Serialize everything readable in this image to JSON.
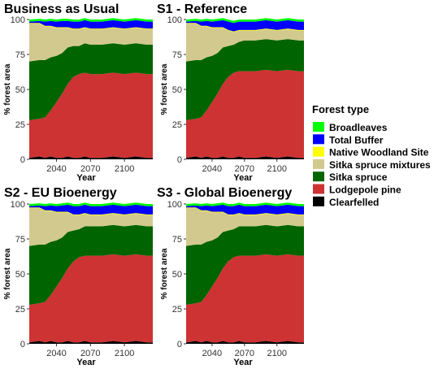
{
  "chart_data": {
    "type": "area",
    "stacked": true,
    "x_ticks": [
      2040,
      2070,
      2100
    ],
    "xlim": [
      2016,
      2125
    ],
    "ylim": [
      0,
      100
    ],
    "y_ticks": [
      0,
      25,
      50,
      75,
      100
    ],
    "legend": {
      "title": "Forest type",
      "placement": "right",
      "entries": [
        {
          "name": "Broadleaves",
          "color": "#00ff00"
        },
        {
          "name": "Total Buffer",
          "color": "#0000ff"
        },
        {
          "name": "Native Woodland Site",
          "color": "#ffff00"
        },
        {
          "name": "Sitka spruce mixtures",
          "color": "#d2c98e"
        },
        {
          "name": "Sitka spruce",
          "color": "#006400"
        },
        {
          "name": "Lodgepole pine",
          "color": "#cd3333"
        },
        {
          "name": "Clearfelled",
          "color": "#000000"
        }
      ]
    },
    "panels": [
      {
        "title": "Business as Usual",
        "xlabel": "Year",
        "ylabel": "% forest area",
        "x": [
          2016,
          2025,
          2030,
          2035,
          2040,
          2045,
          2050,
          2055,
          2060,
          2065,
          2070,
          2080,
          2090,
          2100,
          2110,
          2120,
          2125
        ],
        "series": [
          {
            "name": "Clearfelled",
            "values": [
              1,
              2,
              1,
              2,
              1,
              1,
              2,
              1,
              1,
              2,
              1,
              1,
              2,
              1,
              2,
              1,
              1
            ]
          },
          {
            "name": "Lodgepole pine",
            "values": [
              27,
              27,
              29,
              33,
              40,
              46,
              52,
              58,
              60,
              60,
              60,
              60,
              60,
              60,
              60,
              60,
              60
            ]
          },
          {
            "name": "Sitka spruce",
            "values": [
              42,
              42,
              41,
              38,
              33,
              29,
              26,
              22,
              20,
              21,
              21,
              21,
              21,
              21,
              21,
              21,
              21
            ]
          },
          {
            "name": "Sitka spruce mixtures",
            "values": [
              27,
              26,
              24,
              22,
              20,
              18,
              14,
              12,
              12,
              11,
              11,
              11,
              11,
              11,
              11,
              11,
              11
            ]
          },
          {
            "name": "Native Woodland Site",
            "values": [
              0.5,
              0.5,
              0.5,
              0.5,
              0.5,
              0.5,
              0.5,
              0.5,
              0.5,
              0.5,
              0.5,
              0.5,
              0.5,
              0.5,
              0.5,
              0.5,
              0.5
            ]
          },
          {
            "name": "Total Buffer",
            "values": [
              1,
              1.5,
              3,
              3.5,
              4,
              4.5,
              4.5,
              5,
              5,
              5,
              5,
              5,
              5,
              5,
              5,
              5,
              5
            ]
          },
          {
            "name": "Broadleaves",
            "values": [
              1.5,
              1.5,
              1.5,
              1.5,
              1.5,
              1.5,
              1.5,
              1.5,
              1.5,
              1.5,
              1.5,
              1.5,
              1.5,
              1.5,
              1.5,
              1.5,
              1.5
            ]
          }
        ]
      },
      {
        "title": "S1 - Reference",
        "xlabel": "Year",
        "ylabel": "% forest area",
        "x": [
          2016,
          2025,
          2030,
          2035,
          2040,
          2045,
          2050,
          2055,
          2060,
          2065,
          2070,
          2080,
          2090,
          2100,
          2110,
          2120,
          2125
        ],
        "series": [
          {
            "name": "Clearfelled",
            "values": [
              1,
              2,
              1,
              2,
              1,
              1,
              2,
              1,
              1,
              2,
              1,
              1,
              2,
              1,
              2,
              1,
              1
            ]
          },
          {
            "name": "Lodgepole pine",
            "values": [
              27,
              27,
              29,
              33,
              40,
              46,
              52,
              58,
              61,
              61,
              62,
              62,
              62,
              62,
              62,
              62,
              62
            ]
          },
          {
            "name": "Sitka spruce",
            "values": [
              42,
              42,
              41,
              38,
              33,
              29,
              26,
              22,
              20,
              21,
              22,
              22,
              22,
              22,
              22,
              22,
              22
            ]
          },
          {
            "name": "Sitka spruce mixtures",
            "values": [
              27,
              26,
              24,
              22,
              20,
              18,
              14,
              11,
              9,
              8,
              7,
              7,
              7,
              7,
              7,
              7,
              7
            ]
          },
          {
            "name": "Native Woodland Site",
            "values": [
              0.5,
              0.5,
              0.5,
              0.5,
              0.5,
              0.5,
              0.5,
              0.5,
              0.5,
              0.5,
              0.5,
              0.5,
              0.5,
              0.5,
              0.5,
              0.5,
              0.5
            ]
          },
          {
            "name": "Total Buffer",
            "values": [
              1,
              1.5,
              3,
              3.5,
              4,
              4.5,
              5,
              6,
              6,
              6,
              6,
              6,
              6,
              6,
              6,
              6,
              6
            ]
          },
          {
            "name": "Broadleaves",
            "values": [
              1.5,
              1.5,
              1.5,
              1.5,
              1.5,
              1.5,
              1.5,
              1.5,
              1.5,
              1.5,
              1.5,
              1.5,
              1.5,
              1.5,
              1.5,
              1.5,
              1.5
            ]
          }
        ]
      },
      {
        "title": "S2 - EU Bioenergy",
        "xlabel": "Year",
        "ylabel": "% forest area",
        "x": [
          2016,
          2025,
          2030,
          2035,
          2040,
          2045,
          2050,
          2055,
          2060,
          2065,
          2070,
          2080,
          2090,
          2100,
          2110,
          2120,
          2125
        ],
        "series": [
          {
            "name": "Clearfelled",
            "values": [
              1,
              2,
              1,
              2,
              1,
              1,
              2,
              1,
              1,
              2,
              1,
              1,
              2,
              1,
              2,
              1,
              1
            ]
          },
          {
            "name": "Lodgepole pine",
            "values": [
              27,
              27,
              29,
              33,
              40,
              46,
              52,
              58,
              61,
              61,
              62,
              62,
              62,
              62,
              62,
              62,
              62
            ]
          },
          {
            "name": "Sitka spruce",
            "values": [
              42,
              42,
              41,
              38,
              33,
              29,
              26,
              22,
              20,
              21,
              21,
              21,
              21,
              21,
              21,
              21,
              21
            ]
          },
          {
            "name": "Sitka spruce mixtures",
            "values": [
              27,
              26,
              24,
              22,
              20,
              18,
              14,
              11,
              10,
              9,
              8,
              8,
              8,
              8,
              8,
              8,
              8
            ]
          },
          {
            "name": "Native Woodland Site",
            "values": [
              0.5,
              0.5,
              0.5,
              0.5,
              0.5,
              0.5,
              0.5,
              0.5,
              0.5,
              0.5,
              0.5,
              0.5,
              0.5,
              0.5,
              0.5,
              0.5,
              0.5
            ]
          },
          {
            "name": "Total Buffer",
            "values": [
              1,
              1.5,
              3,
              3.5,
              4,
              4.5,
              5,
              6,
              6,
              6,
              6,
              6,
              6,
              6,
              6,
              6,
              6
            ]
          },
          {
            "name": "Broadleaves",
            "values": [
              1.5,
              1.5,
              1.5,
              1.5,
              1.5,
              1.5,
              1.5,
              1.5,
              1.5,
              1.5,
              1.5,
              1.5,
              1.5,
              1.5,
              1.5,
              1.5,
              1.5
            ]
          }
        ]
      },
      {
        "title": "S3 - Global Bioenergy",
        "xlabel": "Year",
        "ylabel": "% forest area",
        "x": [
          2016,
          2025,
          2030,
          2035,
          2040,
          2045,
          2050,
          2055,
          2060,
          2065,
          2070,
          2080,
          2090,
          2100,
          2110,
          2120,
          2125
        ],
        "series": [
          {
            "name": "Clearfelled",
            "values": [
              1,
              2,
              1,
              2,
              1,
              1,
              2,
              1,
              1,
              2,
              1,
              1,
              2,
              1,
              2,
              1,
              1
            ]
          },
          {
            "name": "Lodgepole pine",
            "values": [
              27,
              27,
              29,
              33,
              40,
              46,
              52,
              58,
              61,
              61,
              62,
              62,
              62,
              62,
              62,
              62,
              62
            ]
          },
          {
            "name": "Sitka spruce",
            "values": [
              42,
              42,
              41,
              38,
              33,
              29,
              26,
              22,
              20,
              21,
              21,
              21,
              21,
              21,
              21,
              21,
              21
            ]
          },
          {
            "name": "Sitka spruce mixtures",
            "values": [
              27,
              26,
              24,
              22,
              20,
              18,
              14,
              11,
              10,
              9,
              8,
              8,
              8,
              8,
              8,
              8,
              8
            ]
          },
          {
            "name": "Native Woodland Site",
            "values": [
              0.5,
              0.5,
              0.5,
              0.5,
              0.5,
              0.5,
              0.5,
              0.5,
              0.5,
              0.5,
              0.5,
              0.5,
              0.5,
              0.5,
              0.5,
              0.5,
              0.5
            ]
          },
          {
            "name": "Total Buffer",
            "values": [
              1,
              1.5,
              3,
              3.5,
              4,
              4.5,
              5,
              6,
              6,
              6,
              6,
              6,
              6,
              6,
              6,
              6,
              6
            ]
          },
          {
            "name": "Broadleaves",
            "values": [
              1.5,
              1.5,
              1.5,
              1.5,
              1.5,
              1.5,
              1.5,
              1.5,
              1.5,
              1.5,
              1.5,
              1.5,
              1.5,
              1.5,
              1.5,
              1.5,
              1.5
            ]
          }
        ]
      }
    ]
  }
}
